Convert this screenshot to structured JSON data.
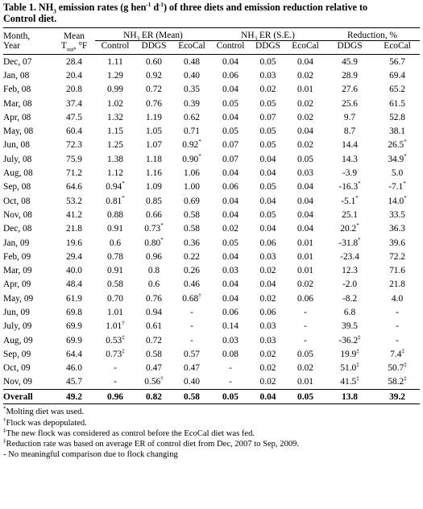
{
  "caption": {
    "line1": "Table 1. NH",
    "line1_sub": "3",
    "line1_rest": " emission rates (g hen",
    "line1_sup1": "-1",
    "line1_mid": " d",
    "line1_sup2": "-1",
    "line1_end": ") of three diets and emission reduction relative to",
    "line2": "Control diet."
  },
  "headers": {
    "month": "Month,",
    "year": "Year",
    "mean": "Mean",
    "temp_T": "T",
    "temp_sub": "out",
    "temp_unit": ", °F",
    "er_mean": "NH",
    "er_mean_sub": "3",
    "er_mean_rest": " ER (Mean)",
    "er_se": "NH",
    "er_se_sub": "3",
    "er_se_rest": " ER (S.E.)",
    "reduction": "Reduction, %",
    "control": "Control",
    "ddgs": "DDGS",
    "ecocal": "EcoCal"
  },
  "rows": [
    {
      "m": "Dec, 07",
      "t": "28.4",
      "mc": "1.11",
      "md": "0.60",
      "me": "0.48",
      "sc": "0.04",
      "sd": "0.05",
      "se": "0.04",
      "rd": "45.9",
      "re": "56.7"
    },
    {
      "m": "Jan, 08",
      "t": "20.4",
      "mc": "1.29",
      "md": "0.92",
      "me": "0.40",
      "sc": "0.06",
      "sd": "0.03",
      "se": "0.02",
      "rd": "28.9",
      "re": "69.4"
    },
    {
      "m": "Feb, 08",
      "t": "20.8",
      "mc": "0.99",
      "md": "0.72",
      "me": "0.35",
      "sc": "0.04",
      "sd": "0.02",
      "se": "0.01",
      "rd": "27.6",
      "re": "65.2"
    },
    {
      "m": "Mar, 08",
      "t": "37.4",
      "mc": "1.02",
      "md": "0.76",
      "me": "0.39",
      "sc": "0.05",
      "sd": "0.05",
      "se": "0.02",
      "rd": "25.6",
      "re": "61.5"
    },
    {
      "m": "Apr, 08",
      "t": "47.5",
      "mc": "1.32",
      "md": "1.19",
      "me": "0.62",
      "sc": "0.04",
      "sd": "0.07",
      "se": "0.02",
      "rd": "9.7",
      "re": "52.8"
    },
    {
      "m": "May, 08",
      "t": "60.4",
      "mc": "1.15",
      "md": "1.05",
      "me": "0.71",
      "sc": "0.05",
      "sd": "0.05",
      "se": "0.04",
      "rd": "8.7",
      "re": "38.1"
    },
    {
      "m": "Jun, 08",
      "t": "72.3",
      "mc": "1.25",
      "md": "1.07",
      "me": "0.92",
      "me_s": "*",
      "sc": "0.07",
      "sd": "0.05",
      "se": "0.02",
      "rd": "14.4",
      "re": "26.5",
      "re_s": "*"
    },
    {
      "m": "July, 08",
      "t": "75.9",
      "mc": "1.38",
      "md": "1.18",
      "me": "0.90",
      "me_s": "*",
      "sc": "0.07",
      "sd": "0.04",
      "se": "0.05",
      "rd": "14.3",
      "re": "34.9",
      "re_s": "*"
    },
    {
      "m": "Aug, 08",
      "t": "71.2",
      "mc": "1.12",
      "md": "1.16",
      "me": "1.06",
      "sc": "0.04",
      "sd": "0.04",
      "se": "0.03",
      "rd": "-3.9",
      "re": "5.0"
    },
    {
      "m": "Sep, 08",
      "t": "64.6",
      "mc": "0.94",
      "mc_s": "*",
      "md": "1.09",
      "me": "1.00",
      "sc": "0.06",
      "sd": "0.05",
      "se": "0.04",
      "rd": "-16.3",
      "rd_s": "*",
      "re": "-7.1",
      "re_s": "*"
    },
    {
      "m": "Oct, 08",
      "t": "53.2",
      "mc": "0.81",
      "mc_s": "*",
      "md": "0.85",
      "me": "0.69",
      "sc": "0.04",
      "sd": "0.04",
      "se": "0.04",
      "rd": "-5.1",
      "rd_s": "*",
      "re": "14.0",
      "re_s": "*"
    },
    {
      "m": "Nov, 08",
      "t": "41.2",
      "mc": "0.88",
      "md": "0.66",
      "me": "0.58",
      "sc": "0.04",
      "sd": "0.05",
      "se": "0.04",
      "rd": "25.1",
      "re": "33.5"
    },
    {
      "m": "Dec, 08",
      "t": "21.8",
      "mc": "0.91",
      "md": "0.73",
      "md_s": "*",
      "me": "0.58",
      "sc": "0.02",
      "sd": "0.04",
      "se": "0.04",
      "rd": "20.2",
      "rd_s": "*",
      "re": "36.3"
    },
    {
      "m": "Jan, 09",
      "t": "19.6",
      "mc": "0.6",
      "md": "0.80",
      "md_s": "*",
      "me": "0.36",
      "sc": "0.05",
      "sd": "0.06",
      "se": "0.01",
      "rd": "-31.8",
      "rd_s": "*",
      "re": "39.6"
    },
    {
      "m": "Feb, 09",
      "t": "29.4",
      "mc": "0.78",
      "md": "0.96",
      "me": "0.22",
      "sc": "0.04",
      "sd": "0.03",
      "se": "0.01",
      "rd": "-23.4",
      "re": "72.2"
    },
    {
      "m": "Mar, 09",
      "t": "40.0",
      "mc": "0.91",
      "md": "0.8",
      "me": "0.26",
      "sc": "0.03",
      "sd": "0.02",
      "se": "0.01",
      "rd": "12.3",
      "re": "71.6"
    },
    {
      "m": "Apr, 09",
      "t": "48.4",
      "mc": "0.58",
      "md": "0.6",
      "me": "0.46",
      "sc": "0.04",
      "sd": "0.04",
      "se": "0.02",
      "rd": "-2.0",
      "re": "21.8"
    },
    {
      "m": "May, 09",
      "t": "61.9",
      "mc": "0.70",
      "md": "0.76",
      "me": "0.68",
      "me_s": "†",
      "sc": "0.04",
      "sd": "0.02",
      "se": "0.06",
      "rd": "-8.2",
      "re": "4.0"
    },
    {
      "m": "Jun, 09",
      "t": "69.8",
      "mc": "1.01",
      "md": "0.94",
      "me": "-",
      "sc": "0.06",
      "sd": "0.06",
      "se": "-",
      "rd": "6.8",
      "re": "-"
    },
    {
      "m": "July, 09",
      "t": "69.9",
      "mc": "1.01",
      "mc_s": "†",
      "md": "0.61",
      "me": "-",
      "sc": "0.14",
      "sd": "0.03",
      "se": "-",
      "rd": "39.5",
      "re": "-"
    },
    {
      "m": "Aug, 09",
      "t": "69.9",
      "mc": "0.53",
      "mc_s": "‡",
      "md": "0.72",
      "me": "-",
      "sc": "0.03",
      "sd": "0.03",
      "se": "-",
      "rd": "-36.2",
      "rd_s": "‡",
      "re": "-"
    },
    {
      "m": "Sep, 09",
      "t": "64.4",
      "mc": "0.73",
      "mc_s": "‡",
      "md": "0.58",
      "me": "0.57",
      "sc": "0.08",
      "sd": "0.02",
      "se": "0.05",
      "rd": "19.9",
      "rd_s": "‡",
      "re": "7.4",
      "re_s": "‡"
    },
    {
      "m": "Oct, 09",
      "t": "46.0",
      "mc": "-",
      "md": "0.47",
      "me": "0.47",
      "sc": "-",
      "sd": "0.02",
      "se": "0.02",
      "rd": "51.0",
      "rd_s": "‡",
      "re": "50.7",
      "re_s": "‡"
    },
    {
      "m": "Nov, 09",
      "t": "45.7",
      "mc": "-",
      "md": "0.56",
      "md_s": "†",
      "me": "0.40",
      "sc": "-",
      "sd": "0.02",
      "se": "0.01",
      "rd": "41.5",
      "rd_s": "‡",
      "re": "58.2",
      "re_s": "‡"
    }
  ],
  "overall": {
    "m": "Overall",
    "t": "49.2",
    "mc": "0.96",
    "md": "0.82",
    "me": "0.58",
    "sc": "0.05",
    "sd": "0.04",
    "se": "0.05",
    "rd": "13.8",
    "re": "39.2"
  },
  "notes": [
    {
      "mark": "*",
      "text": "Molting diet was used."
    },
    {
      "mark": "†",
      "text": "Flock was depopulated."
    },
    {
      "mark": "‡",
      "text": "The new flock was considered as control before the EcoCal diet was fed."
    },
    {
      "mark": "‡",
      "text": "Reduction rate was based on average ER of control diet from Dec, 2007 to Sep, 2009."
    },
    {
      "mark": "",
      "text": "- No meaningful comparison due to flock changing"
    }
  ]
}
